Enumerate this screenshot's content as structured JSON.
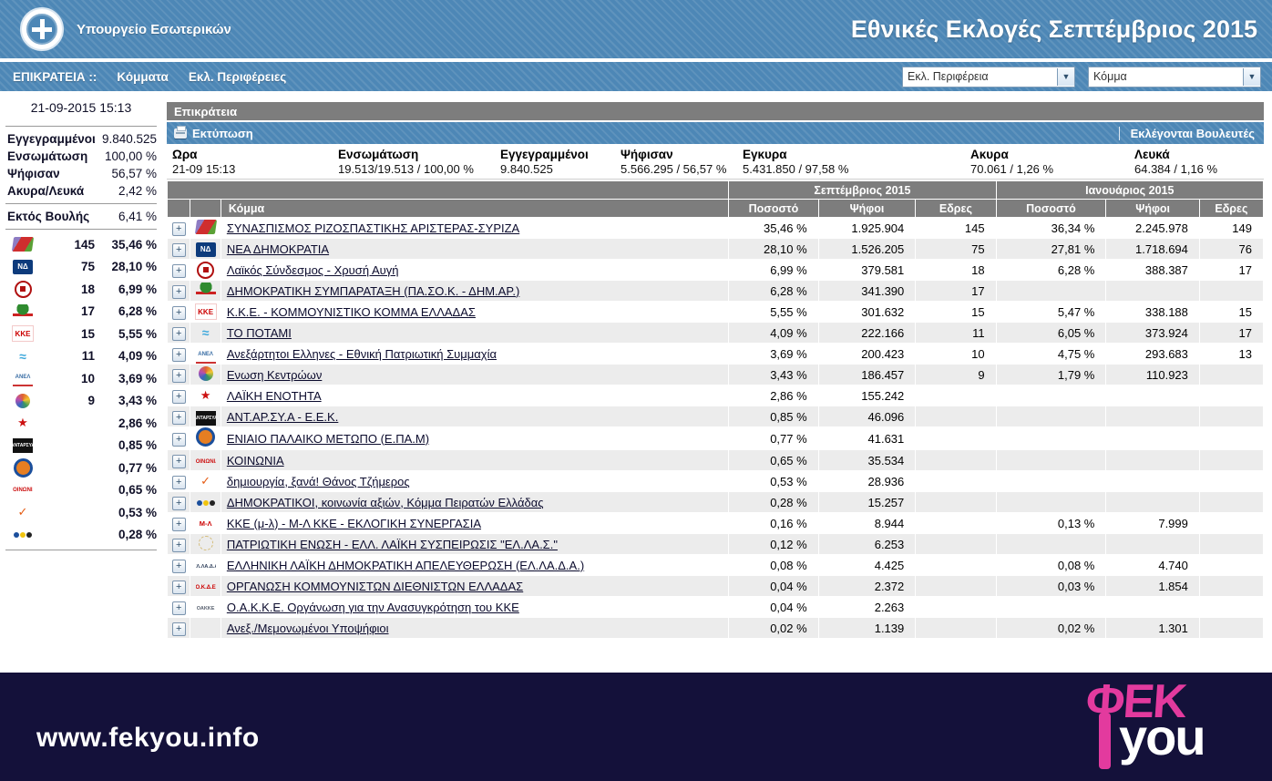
{
  "header": {
    "ministry": "Υπουργείο Εσωτερικών",
    "title": "Εθνικές Εκλογές Σεπτέμβριος 2015"
  },
  "nav": {
    "items": [
      "ΕΠΙΚΡΑΤΕΙΑ ::",
      "Κόμματα",
      "Εκλ. Περιφέρειες"
    ],
    "region_select": "Εκλ. Περιφέρεια",
    "party_select": "Κόμμα"
  },
  "sidebar": {
    "timestamp": "21-09-2015 15:13",
    "stats": [
      {
        "label": "Εγγεγραμμένοι",
        "value": "9.840.525"
      },
      {
        "label": "Ενσωμάτωση",
        "value": "100,00 %"
      },
      {
        "label": "Ψήφισαν",
        "value": "56,57 %"
      },
      {
        "label": "Ακυρα/Λευκά",
        "value": "2,42 %"
      }
    ],
    "outside": {
      "label": "Εκτός Βουλής",
      "value": "6,41 %"
    },
    "parties": [
      {
        "icon": "syriza",
        "seats": "145",
        "pct": "35,46 %"
      },
      {
        "icon": "nd",
        "seats": "75",
        "pct": "28,10 %"
      },
      {
        "icon": "xa",
        "seats": "18",
        "pct": "6,99 %"
      },
      {
        "icon": "pasok",
        "seats": "17",
        "pct": "6,28 %"
      },
      {
        "icon": "kke",
        "seats": "15",
        "pct": "5,55 %"
      },
      {
        "icon": "potami",
        "seats": "11",
        "pct": "4,09 %"
      },
      {
        "icon": "anel",
        "seats": "10",
        "pct": "3,69 %"
      },
      {
        "icon": "ek",
        "seats": "9",
        "pct": "3,43 %"
      },
      {
        "icon": "lae",
        "seats": "",
        "pct": "2,86 %"
      },
      {
        "icon": "antarsya",
        "seats": "",
        "pct": "0,85 %"
      },
      {
        "icon": "epam",
        "seats": "",
        "pct": "0,77 %"
      },
      {
        "icon": "koinonia",
        "seats": "",
        "pct": "0,65 %"
      },
      {
        "icon": "dimiourgia",
        "seats": "",
        "pct": "0,53 %"
      },
      {
        "icon": "dimokratikoi",
        "seats": "",
        "pct": "0,28 %"
      }
    ]
  },
  "main": {
    "region_title": "Επικράτεια",
    "toolbar": {
      "print_label": "Εκτύπωση",
      "elected_label": "Εκλέγονται Βουλευτές"
    },
    "summary": {
      "columns": [
        {
          "label": "Ωρα",
          "value": "21-09 15:13"
        },
        {
          "label": "Ενσωμάτωση",
          "value": "19.513/19.513 / 100,00 %"
        },
        {
          "label": "Εγγεγραμμένοι",
          "value": "9.840.525"
        },
        {
          "label": "Ψήφισαν",
          "value": "5.566.295 / 56,57 %"
        },
        {
          "label": "Εγκυρα",
          "value": "5.431.850 / 97,58 %"
        },
        {
          "label": "Ακυρα",
          "value": "70.061 / 1,26 %"
        },
        {
          "label": "Λευκά",
          "value": "64.384 / 1,16 %"
        }
      ]
    },
    "table": {
      "group_headers": [
        "Σεπτέμβριος 2015",
        "Ιανουάριος 2015"
      ],
      "col_headers": {
        "party": "Κόμμα",
        "pct": "Ποσοστό",
        "votes": "Ψήφοι",
        "seats": "Εδρες"
      },
      "rows": [
        {
          "icon": "syriza",
          "name": "ΣΥΝΑΣΠΙΣΜΟΣ ΡΙΖΟΣΠΑΣΤΙΚΗΣ ΑΡΙΣΤΕΡΑΣ-ΣΥΡΙΖΑ",
          "sep_pct": "35,46 %",
          "sep_votes": "1.925.904",
          "sep_seats": "145",
          "jan_pct": "36,34 %",
          "jan_votes": "2.245.978",
          "jan_seats": "149"
        },
        {
          "icon": "nd",
          "name": "ΝΕΑ ΔΗΜΟΚΡΑΤΙΑ",
          "sep_pct": "28,10 %",
          "sep_votes": "1.526.205",
          "sep_seats": "75",
          "jan_pct": "27,81 %",
          "jan_votes": "1.718.694",
          "jan_seats": "76"
        },
        {
          "icon": "xa",
          "name": "Λαϊκός Σύνδεσμος - Χρυσή Αυγή",
          "sep_pct": "6,99 %",
          "sep_votes": "379.581",
          "sep_seats": "18",
          "jan_pct": "6,28 %",
          "jan_votes": "388.387",
          "jan_seats": "17"
        },
        {
          "icon": "pasok",
          "name": "ΔΗΜΟΚΡΑΤΙΚΗ ΣΥΜΠΑΡΑΤΑΞΗ (ΠΑ.ΣΟ.Κ. - ΔΗΜ.ΑΡ.)",
          "sep_pct": "6,28 %",
          "sep_votes": "341.390",
          "sep_seats": "17",
          "jan_pct": "",
          "jan_votes": "",
          "jan_seats": ""
        },
        {
          "icon": "kke",
          "name": "Κ.Κ.Ε. - ΚΟΜΜΟΥΝΙΣΤΙΚΟ ΚΟΜΜΑ ΕΛΛΑΔΑΣ",
          "sep_pct": "5,55 %",
          "sep_votes": "301.632",
          "sep_seats": "15",
          "jan_pct": "5,47 %",
          "jan_votes": "338.188",
          "jan_seats": "15"
        },
        {
          "icon": "potami",
          "name": "ΤΟ ΠΟΤΑΜΙ",
          "sep_pct": "4,09 %",
          "sep_votes": "222.166",
          "sep_seats": "11",
          "jan_pct": "6,05 %",
          "jan_votes": "373.924",
          "jan_seats": "17"
        },
        {
          "icon": "anel",
          "name": "Ανεξάρτητοι Ελληνες - Εθνική Πατριωτική Συμμαχία",
          "sep_pct": "3,69 %",
          "sep_votes": "200.423",
          "sep_seats": "10",
          "jan_pct": "4,75 %",
          "jan_votes": "293.683",
          "jan_seats": "13"
        },
        {
          "icon": "ek",
          "name": "Ενωση Κεντρώων",
          "sep_pct": "3,43 %",
          "sep_votes": "186.457",
          "sep_seats": "9",
          "jan_pct": "1,79 %",
          "jan_votes": "110.923",
          "jan_seats": ""
        },
        {
          "icon": "lae",
          "name": "ΛΑΪΚΗ ΕΝΟΤΗΤΑ",
          "sep_pct": "2,86 %",
          "sep_votes": "155.242",
          "sep_seats": "",
          "jan_pct": "",
          "jan_votes": "",
          "jan_seats": ""
        },
        {
          "icon": "antarsya",
          "name": "ΑΝΤ.ΑΡ.ΣΥ.Α - Ε.Ε.Κ.",
          "sep_pct": "0,85 %",
          "sep_votes": "46.096",
          "sep_seats": "",
          "jan_pct": "",
          "jan_votes": "",
          "jan_seats": ""
        },
        {
          "icon": "epam",
          "name": "ΕΝΙΑΙΟ ΠΑΛΑΙΚΟ ΜΕΤΩΠΟ (Ε.ΠΑ.Μ)",
          "sep_pct": "0,77 %",
          "sep_votes": "41.631",
          "sep_seats": "",
          "jan_pct": "",
          "jan_votes": "",
          "jan_seats": ""
        },
        {
          "icon": "koinonia",
          "name": "ΚΟΙΝΩΝΙΑ",
          "sep_pct": "0,65 %",
          "sep_votes": "35.534",
          "sep_seats": "",
          "jan_pct": "",
          "jan_votes": "",
          "jan_seats": ""
        },
        {
          "icon": "dimiourgia",
          "name": "δημιουργία, ξανά! Θάνος Τζήμερος",
          "sep_pct": "0,53 %",
          "sep_votes": "28.936",
          "sep_seats": "",
          "jan_pct": "",
          "jan_votes": "",
          "jan_seats": ""
        },
        {
          "icon": "dimokratikoi",
          "name": "ΔΗΜΟΚΡΑΤΙΚΟΙ, κοινωνία αξιών, Κόμμα Πειρατών Ελλάδας",
          "sep_pct": "0,28 %",
          "sep_votes": "15.257",
          "sep_seats": "",
          "jan_pct": "",
          "jan_votes": "",
          "jan_seats": ""
        },
        {
          "icon": "kkeml",
          "name": "ΚΚΕ (μ-λ) - Μ-Λ ΚΚΕ - ΕΚΛΟΓΙΚΗ ΣΥΝΕΡΓΑΣΙΑ",
          "sep_pct": "0,16 %",
          "sep_votes": "8.944",
          "sep_seats": "",
          "jan_pct": "0,13 %",
          "jan_votes": "7.999",
          "jan_seats": ""
        },
        {
          "icon": "patriotiki",
          "name": "ΠΑΤΡΙΩΤΙΚΗ ΕΝΩΣΗ - ΕΛΛ. ΛΑΪΚΗ ΣΥΣΠΕΙΡΩΣΙΣ \"ΕΛ.ΛΑ.Σ.\"",
          "sep_pct": "0,12 %",
          "sep_votes": "6.253",
          "sep_seats": "",
          "jan_pct": "",
          "jan_votes": "",
          "jan_seats": ""
        },
        {
          "icon": "ellada",
          "name": "ΕΛΛΗΝΙΚΗ ΛΑΪΚΗ ΔΗΜΟΚΡΑΤΙΚΗ ΑΠΕΛΕΥΘΕΡΩΣΗ (ΕΛ.ΛΑ.Δ.Α.)",
          "sep_pct": "0,08 %",
          "sep_votes": "4.425",
          "sep_seats": "",
          "jan_pct": "0,08 %",
          "jan_votes": "4.740",
          "jan_seats": ""
        },
        {
          "icon": "okde",
          "name": "ΟΡΓΑΝΩΣΗ ΚΟΜΜΟΥΝΙΣΤΩΝ ΔΙΕΘΝΙΣΤΩΝ ΕΛΛΑΔΑΣ",
          "sep_pct": "0,04 %",
          "sep_votes": "2.372",
          "sep_seats": "",
          "jan_pct": "0,03 %",
          "jan_votes": "1.854",
          "jan_seats": ""
        },
        {
          "icon": "oakke",
          "name": "Ο.Α.Κ.Κ.Ε. Οργάνωση για την Ανασυγκρότηση του ΚΚΕ",
          "sep_pct": "0,04 %",
          "sep_votes": "2.263",
          "sep_seats": "",
          "jan_pct": "",
          "jan_votes": "",
          "jan_seats": ""
        },
        {
          "icon": "",
          "name": "Ανεξ./Μεμονωμένοι Υποψήφιοι",
          "sep_pct": "0,02 %",
          "sep_votes": "1.139",
          "sep_seats": "",
          "jan_pct": "0,02 %",
          "jan_votes": "1.301",
          "jan_seats": ""
        }
      ]
    }
  },
  "footer": {
    "url": "www.fekyou.info",
    "logo": {
      "top": "ΦΕΚ",
      "bottom": "you"
    }
  },
  "colors": {
    "header_blue": "#4d87b6",
    "bar_gray": "#7d7d7d",
    "row_alt": "#ececec",
    "footer_navy": "#14113a",
    "logo_pink": "#e33a9e",
    "link_dark": "#0b0b2d"
  }
}
